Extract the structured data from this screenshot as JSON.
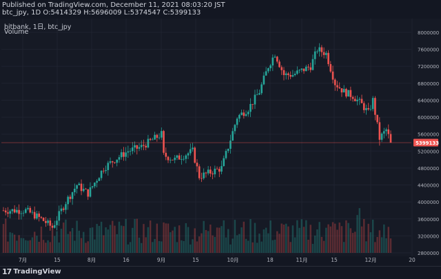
{
  "header": {
    "published": "Published on TradingView.com, December 11, 2021 08:03:20 JST",
    "ohlc": "btc_jpy, 1D O:5414329 H:5696009 L:5374547 C:5399133"
  },
  "legend": {
    "symbol": "bitbank, 1日, btc_jpy",
    "volume_label": "Volume"
  },
  "footer": {
    "logo_mark": "17",
    "logo_text": "TradingView"
  },
  "colors": {
    "background": "#161a25",
    "up": "#26a69a",
    "down": "#ef5350",
    "price_badge": "#ef5350",
    "text": "#d1d4dc"
  },
  "chart_data": {
    "type": "candlestick",
    "symbol": "btc_jpy",
    "interval": "1D",
    "y_axis_ticks": [
      8000000,
      7600000,
      7200000,
      6800000,
      6400000,
      6000000,
      5600000,
      5200000,
      4800000,
      4400000,
      4000000,
      3600000,
      3200000,
      2800000
    ],
    "x_axis_ticks": [
      "7月",
      "15",
      "8月",
      "16",
      "9月",
      "15",
      "10月",
      "18",
      "11月",
      "15",
      "12月",
      "20"
    ],
    "last_price": 5399133,
    "last_price_label": "5399133",
    "ylim": [
      2700000,
      8050000
    ],
    "anchors": [
      [
        0,
        3800000
      ],
      [
        10,
        3800000
      ],
      [
        17,
        3600000
      ],
      [
        22,
        3400000
      ],
      [
        28,
        4000000
      ],
      [
        33,
        4400000
      ],
      [
        38,
        4200000
      ],
      [
        45,
        4800000
      ],
      [
        50,
        5000000
      ],
      [
        56,
        5200000
      ],
      [
        62,
        5300000
      ],
      [
        68,
        5500000
      ],
      [
        71,
        5600000
      ],
      [
        72,
        5100000
      ],
      [
        77,
        5000000
      ],
      [
        85,
        5200000
      ],
      [
        88,
        4600000
      ],
      [
        93,
        4700000
      ],
      [
        98,
        4800000
      ],
      [
        101,
        5300000
      ],
      [
        105,
        6000000
      ],
      [
        110,
        6200000
      ],
      [
        115,
        6600000
      ],
      [
        119,
        7200000
      ],
      [
        122,
        7500000
      ],
      [
        126,
        7000000
      ],
      [
        130,
        7000000
      ],
      [
        134,
        7100000
      ],
      [
        138,
        7200000
      ],
      [
        141,
        7600000
      ],
      [
        145,
        7500000
      ],
      [
        149,
        6800000
      ],
      [
        153,
        6600000
      ],
      [
        157,
        6500000
      ],
      [
        161,
        6300000
      ],
      [
        164,
        6100000
      ],
      [
        166,
        6400000
      ],
      [
        169,
        5500000
      ],
      [
        172,
        5700000
      ],
      [
        174,
        5414329
      ]
    ],
    "volume": {
      "count": 175,
      "ymin": 2800000,
      "ymax": 3800000
    }
  }
}
